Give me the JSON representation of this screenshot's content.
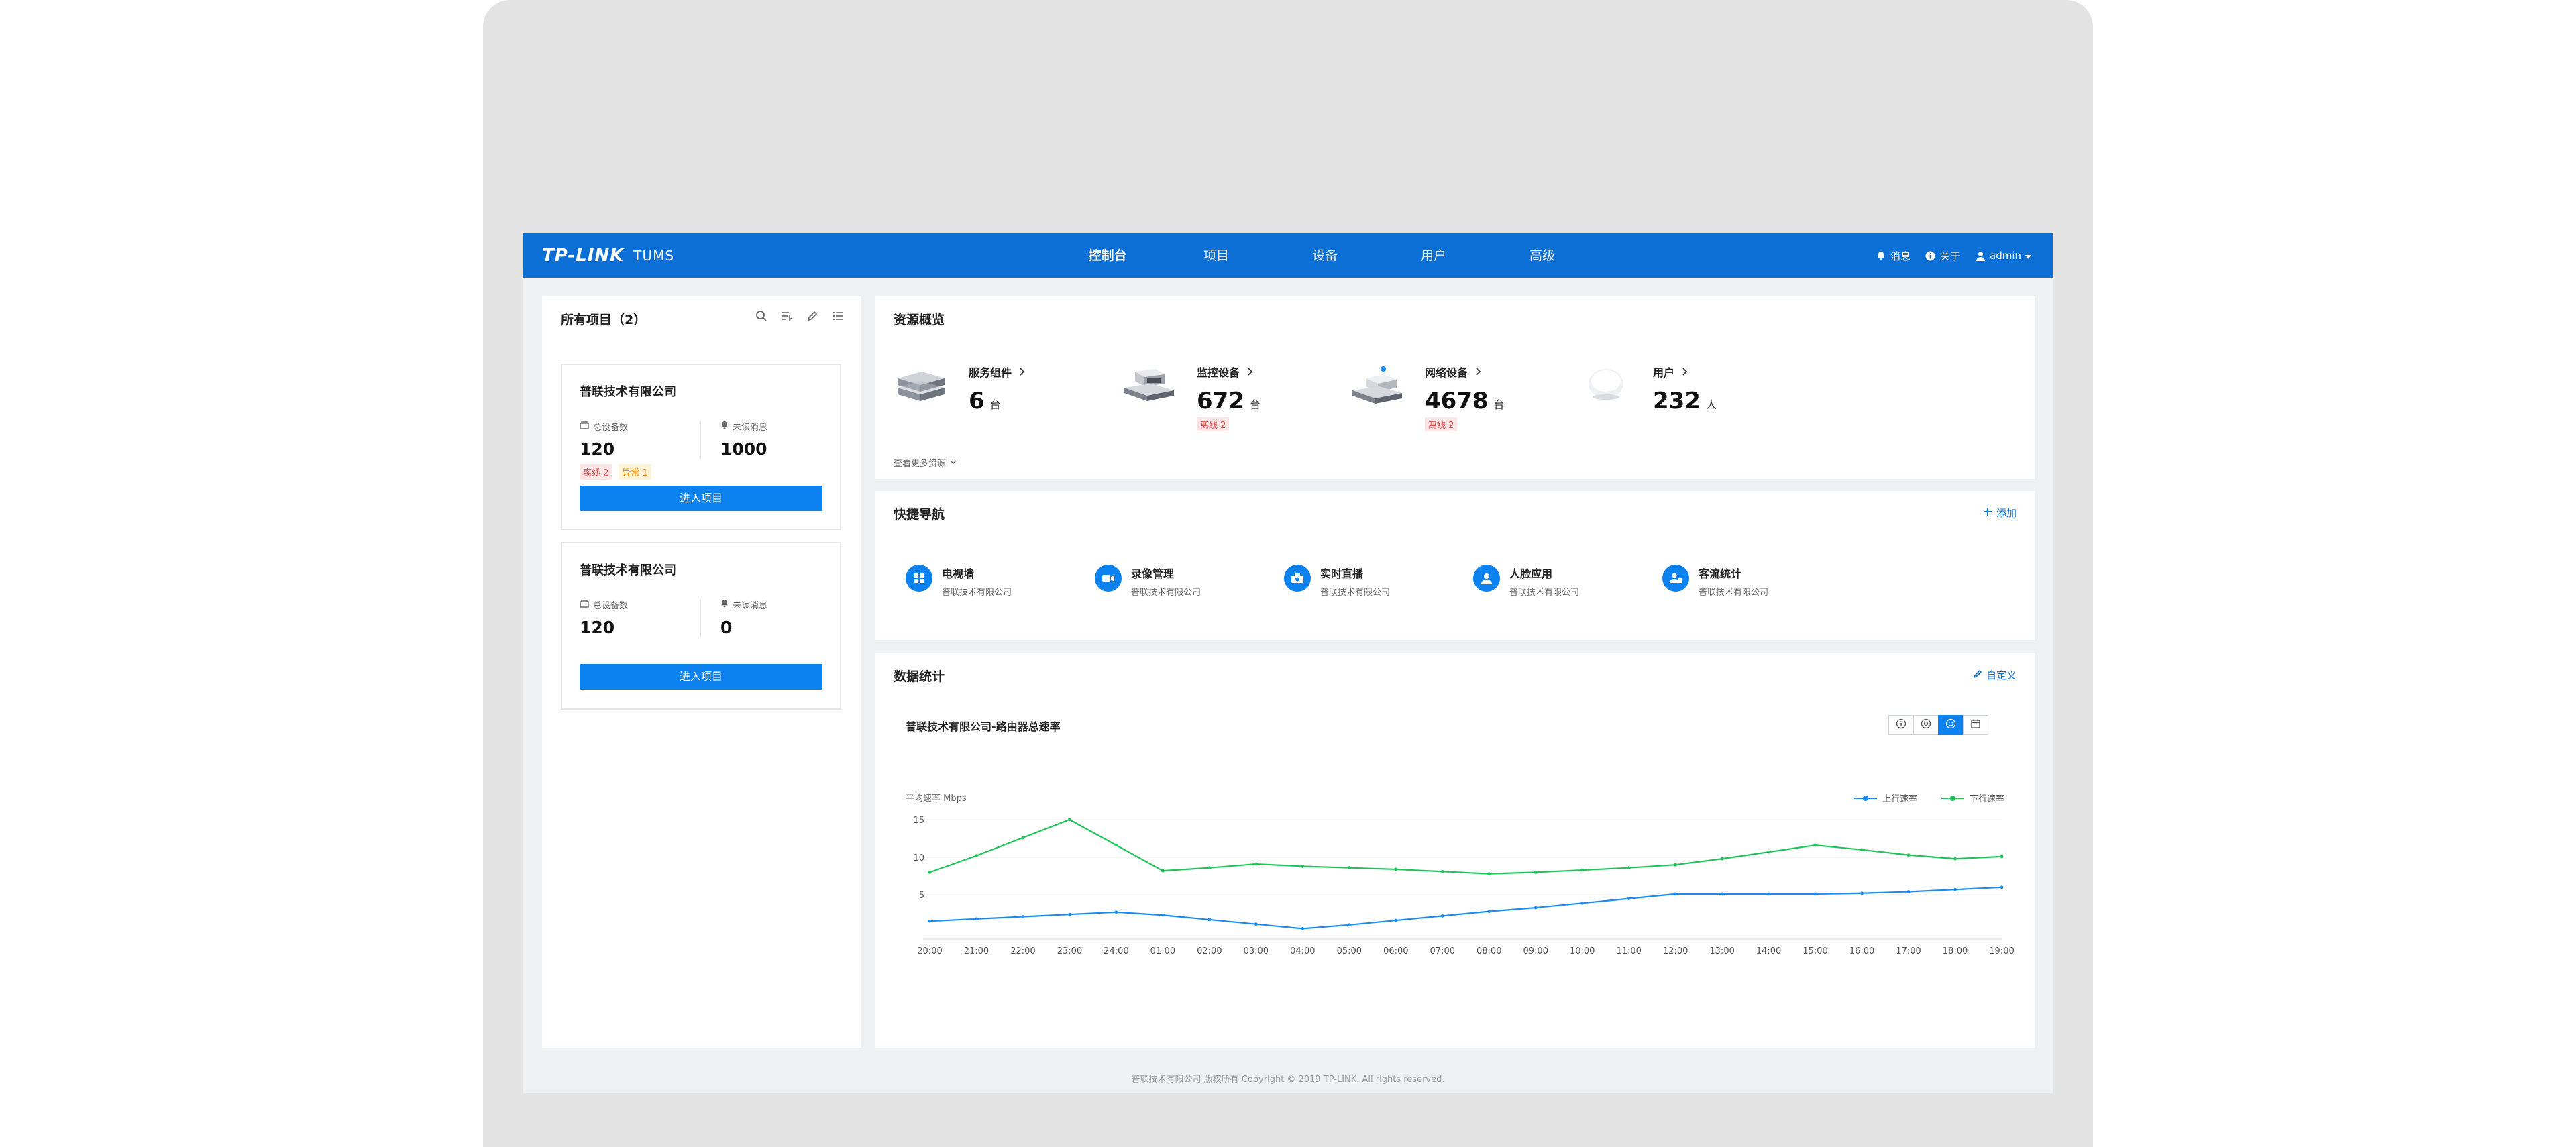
{
  "header": {
    "logo": "TP-LINK",
    "product": "TUMS",
    "nav": [
      "控制台",
      "项目",
      "设备",
      "用户",
      "高级"
    ],
    "messages": "消息",
    "about": "关于",
    "user": "admin"
  },
  "projects": {
    "title": "所有项目（2）",
    "cards": [
      {
        "name": "普联技术有限公司",
        "devices_label": "总设备数",
        "devices": "120",
        "messages_label": "未读消息",
        "messages": "1000",
        "badge_offline": "离线 2",
        "badge_abnormal": "异常 1",
        "button": "进入项目"
      },
      {
        "name": "普联技术有限公司",
        "devices_label": "总设备数",
        "devices": "120",
        "messages_label": "未读消息",
        "messages": "0",
        "button": "进入项目"
      }
    ]
  },
  "resources": {
    "title": "资源概览",
    "items": [
      {
        "name": "服务组件",
        "value": "6",
        "unit": "台"
      },
      {
        "name": "监控设备",
        "value": "672",
        "unit": "台",
        "badge": "离线 2"
      },
      {
        "name": "网络设备",
        "value": "4678",
        "unit": "台",
        "badge": "离线 2"
      },
      {
        "name": "用户",
        "value": "232",
        "unit": "人"
      }
    ],
    "more": "查看更多资源"
  },
  "quick_nav": {
    "title": "快捷导航",
    "add": "添加",
    "items": [
      {
        "name": "电视墙",
        "sub": "普联技术有限公司"
      },
      {
        "name": "录像管理",
        "sub": "普联技术有限公司"
      },
      {
        "name": "实时直播",
        "sub": "普联技术有限公司"
      },
      {
        "name": "人脸应用",
        "sub": "普联技术有限公司"
      },
      {
        "name": "客流统计",
        "sub": "普联技术有限公司"
      }
    ]
  },
  "stats": {
    "title": "数据统计",
    "customize": "自定义",
    "chart_title": "普联技术有限公司-路由器总速率"
  },
  "chart_data": {
    "type": "line",
    "ylabel": "平均速率 Mbps",
    "ylim": [
      0,
      15
    ],
    "yticks": [
      5,
      10,
      15
    ],
    "x": [
      "20:00",
      "21:00",
      "22:00",
      "23:00",
      "24:00",
      "01:00",
      "02:00",
      "03:00",
      "04:00",
      "05:00",
      "06:00",
      "07:00",
      "08:00",
      "09:00",
      "10:00",
      "11:00",
      "12:00",
      "13:00",
      "14:00",
      "15:00",
      "16:00",
      "17:00",
      "18:00",
      "19:00"
    ],
    "series": [
      {
        "name": "上行速率",
        "color": "#1a8cf0",
        "values": [
          1.5,
          1.8,
          2.1,
          2.4,
          2.7,
          2.3,
          1.7,
          1.1,
          0.5,
          1.0,
          1.6,
          2.2,
          2.8,
          3.3,
          3.9,
          4.5,
          5.1,
          5.1,
          5.1,
          5.1,
          5.2,
          5.4,
          5.7,
          6.0
        ]
      },
      {
        "name": "下行速率",
        "color": "#22c25a",
        "values": [
          8.0,
          10.2,
          12.6,
          15.0,
          11.6,
          8.2,
          8.6,
          9.1,
          8.8,
          8.6,
          8.4,
          8.1,
          7.8,
          8.0,
          8.3,
          8.6,
          9.0,
          9.8,
          10.7,
          11.6,
          11.0,
          10.3,
          9.8,
          10.1
        ]
      }
    ],
    "legend_position": "top-right",
    "grid": true
  },
  "footer": "普联技术有限公司 版权所有 Copyright © 2019 TP-LINK. All rights reserved."
}
